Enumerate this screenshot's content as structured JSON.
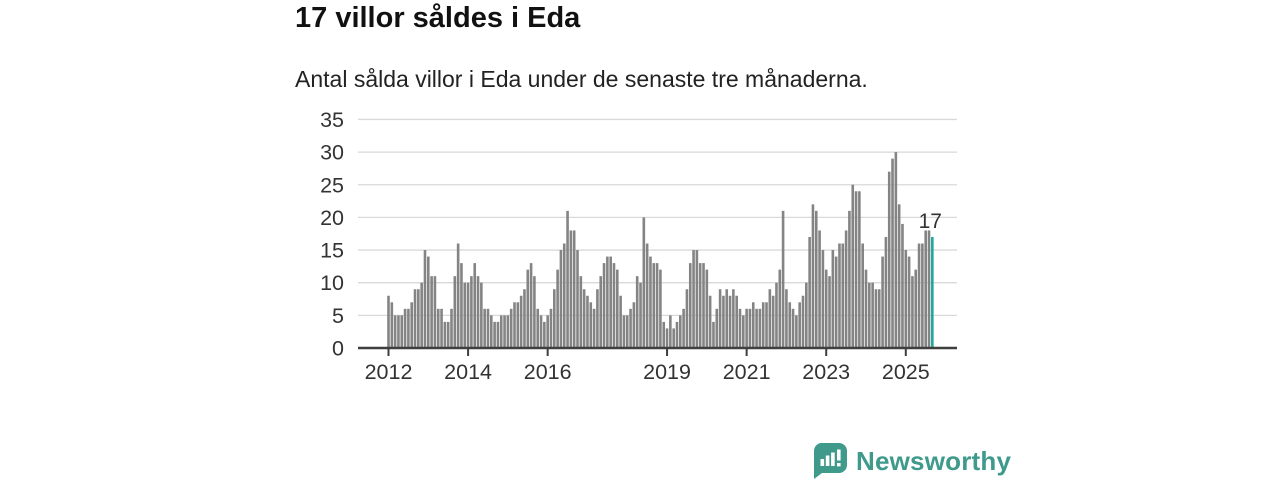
{
  "header": {
    "title": "17 villor såldes i Eda",
    "subtitle": "Antal sålda villor i Eda under de senaste tre månaderna."
  },
  "chart_data": {
    "type": "bar",
    "title": "17 villor såldes i Eda",
    "subtitle": "Antal sålda villor i Eda under de senaste tre månaderna.",
    "unit": "sålda villor (rullande tre månader)",
    "frequency": "monthly",
    "start": "2012-01",
    "end": "2025-09",
    "values": [
      8,
      7,
      5,
      5,
      5,
      6,
      6,
      7,
      9,
      9,
      10,
      15,
      14,
      11,
      11,
      6,
      6,
      4,
      4,
      6,
      11,
      16,
      13,
      10,
      10,
      11,
      13,
      11,
      10,
      6,
      6,
      5,
      4,
      4,
      5,
      5,
      5,
      6,
      7,
      7,
      8,
      9,
      12,
      13,
      11,
      6,
      5,
      4,
      5,
      6,
      9,
      12,
      15,
      16,
      21,
      18,
      18,
      15,
      11,
      9,
      8,
      7,
      6,
      9,
      11,
      13,
      14,
      14,
      13,
      12,
      8,
      5,
      5,
      6,
      7,
      11,
      10,
      20,
      16,
      14,
      13,
      13,
      12,
      4,
      3,
      5,
      3,
      4,
      5,
      6,
      9,
      13,
      15,
      15,
      13,
      13,
      12,
      8,
      4,
      6,
      9,
      8,
      9,
      8,
      9,
      8,
      6,
      5,
      6,
      6,
      7,
      6,
      6,
      7,
      7,
      9,
      8,
      10,
      12,
      21,
      9,
      7,
      6,
      5,
      7,
      8,
      10,
      17,
      22,
      21,
      18,
      15,
      12,
      11,
      15,
      14,
      16,
      16,
      18,
      21,
      25,
      24,
      24,
      16,
      12,
      10,
      10,
      9,
      9,
      14,
      17,
      27,
      29,
      30,
      22,
      19,
      15,
      14,
      11,
      12,
      16,
      16,
      18,
      18,
      17
    ],
    "highlight": {
      "index": 164,
      "value": 17,
      "label": "17",
      "color": "#1ca9a1"
    },
    "bar_color": "#848484",
    "axis_color": "#3f3f3f",
    "grid_color": "#d9d9d9",
    "label_color": "#333333",
    "ylim": [
      0,
      35
    ],
    "yticks": [
      0,
      5,
      10,
      15,
      20,
      25,
      30,
      35
    ],
    "xticks": [
      2012,
      2014,
      2016,
      2019,
      2021,
      2023,
      2025
    ],
    "grid": true,
    "legend": "none"
  },
  "footer": {
    "brand": "Newsworthy",
    "brand_color": "#3f9a8c",
    "logo_icon": "bar-chart-speech-bubble-icon"
  }
}
